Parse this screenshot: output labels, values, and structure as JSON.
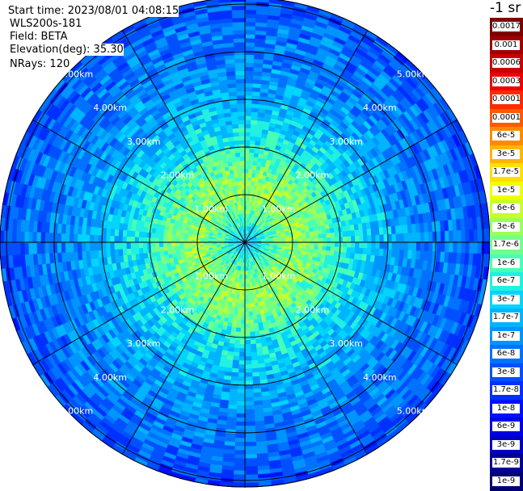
{
  "header": {
    "start_time": "Start time: 2023/08/01 04:08:15",
    "instrument": "WLS200s-181",
    "field": "Field: BETA",
    "elevation": "Elevation(deg): 35.30",
    "nrays": "NRays: 120"
  },
  "colorbar": {
    "title": "-1 sr",
    "labels": [
      "0.0017",
      "0.001",
      "0.0006",
      "0.0003",
      "0.00017",
      "0.0001",
      "6e-5",
      "3e-5",
      "1.7e-5",
      "1e-5",
      "6e-6",
      "3e-6",
      "1.7e-6",
      "1e-6",
      "6e-7",
      "3e-7",
      "1.7e-7",
      "1e-7",
      "6e-8",
      "3e-8",
      "1.7e-8",
      "1e-8",
      "6e-9",
      "3e-9",
      "1.7e-9",
      "1e-9"
    ],
    "colors": [
      "#7f0000",
      "#a00000",
      "#c80000",
      "#ee0000",
      "#ff2a00",
      "#ff5a00",
      "#ff8a00",
      "#ffb500",
      "#ffde00",
      "#f0ff00",
      "#c8ff28",
      "#9cff5a",
      "#72ff8a",
      "#48ffb6",
      "#22f0e0",
      "#00d4ff",
      "#00b4ff",
      "#0094ff",
      "#0072ff",
      "#0050ff",
      "#0030ff",
      "#0010ff",
      "#0000e6",
      "#0000c0",
      "#000099",
      "#000070"
    ]
  },
  "chart_data": {
    "type": "heatmap",
    "projection": "polar PPI scan",
    "variable": "BETA",
    "range_rings_km": [
      1.0,
      2.0,
      3.0,
      4.0,
      5.0
    ],
    "range_ring_labels": [
      "1.00km",
      "2.00km",
      "3.00km",
      "4.00km",
      "5.00km"
    ],
    "max_range_km": 5.0,
    "n_rays": 120,
    "azimuth_spokes_deg": [
      0,
      30,
      60,
      90,
      120,
      150,
      180,
      210,
      240,
      270,
      300,
      330
    ],
    "color_scale": "log",
    "value_range": [
      1e-09,
      0.0017
    ],
    "radial_profile": {
      "range_km": [
        0.0,
        0.5,
        1.0,
        1.5,
        2.0,
        2.5,
        3.0,
        3.5,
        4.0,
        4.5,
        5.0
      ],
      "typical_value": [
        1.7e-07,
        1e-06,
        3e-06,
        1.7e-06,
        6e-07,
        3e-07,
        1.7e-07,
        1e-07,
        6e-08,
        6e-08,
        3e-08
      ]
    }
  }
}
